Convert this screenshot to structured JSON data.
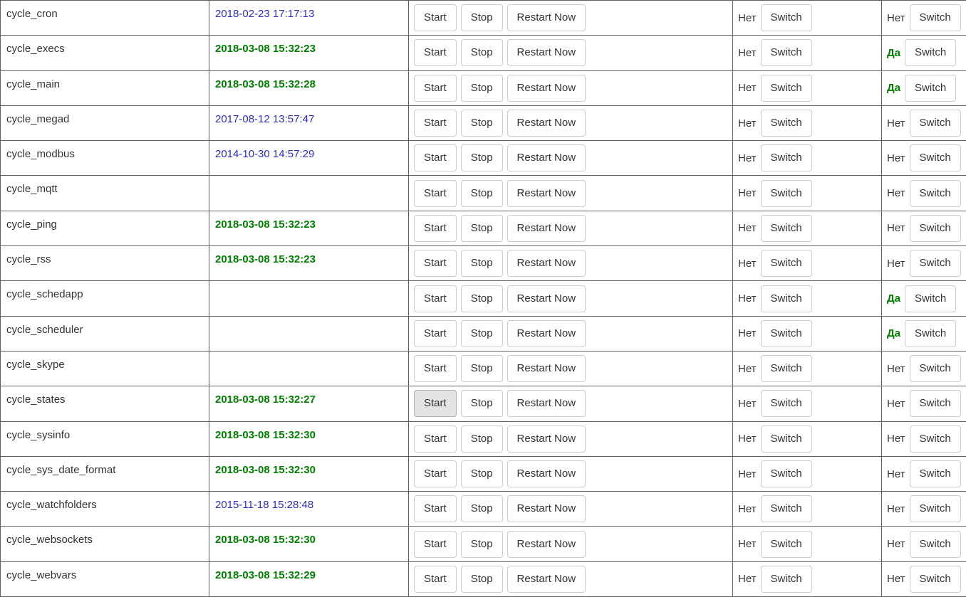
{
  "colors": {
    "timestamp_recent": "#008000",
    "timestamp_old": "#2d2dc6",
    "flag_yes": "#008000",
    "text": "#333333",
    "grid_border": "#606060",
    "button_border": "#cccccc",
    "button_active_bg": "#e4e4e4"
  },
  "buttons": {
    "start": "Start",
    "stop": "Stop",
    "restart": "Restart Now",
    "switch": "Switch"
  },
  "labels": {
    "yes": "Да",
    "no": "Нет"
  },
  "rows": [
    {
      "name": "cycle_cron",
      "timestamp": "2018-02-23 17:17:13",
      "timestamp_style": "old",
      "flag_a": "no",
      "flag_b": "no",
      "start_active": false
    },
    {
      "name": "cycle_execs",
      "timestamp": "2018-03-08 15:32:23",
      "timestamp_style": "recent",
      "flag_a": "no",
      "flag_b": "yes",
      "start_active": false
    },
    {
      "name": "cycle_main",
      "timestamp": "2018-03-08 15:32:28",
      "timestamp_style": "recent",
      "flag_a": "no",
      "flag_b": "yes",
      "start_active": false
    },
    {
      "name": "cycle_megad",
      "timestamp": "2017-08-12 13:57:47",
      "timestamp_style": "old",
      "flag_a": "no",
      "flag_b": "no",
      "start_active": false
    },
    {
      "name": "cycle_modbus",
      "timestamp": "2014-10-30 14:57:29",
      "timestamp_style": "old",
      "flag_a": "no",
      "flag_b": "no",
      "start_active": false
    },
    {
      "name": "cycle_mqtt",
      "timestamp": "",
      "timestamp_style": "old",
      "flag_a": "no",
      "flag_b": "no",
      "start_active": false
    },
    {
      "name": "cycle_ping",
      "timestamp": "2018-03-08 15:32:23",
      "timestamp_style": "recent",
      "flag_a": "no",
      "flag_b": "no",
      "start_active": false
    },
    {
      "name": "cycle_rss",
      "timestamp": "2018-03-08 15:32:23",
      "timestamp_style": "recent",
      "flag_a": "no",
      "flag_b": "no",
      "start_active": false
    },
    {
      "name": "cycle_schedapp",
      "timestamp": "",
      "timestamp_style": "old",
      "flag_a": "no",
      "flag_b": "yes",
      "start_active": false
    },
    {
      "name": "cycle_scheduler",
      "timestamp": "",
      "timestamp_style": "old",
      "flag_a": "no",
      "flag_b": "yes",
      "start_active": false
    },
    {
      "name": "cycle_skype",
      "timestamp": "",
      "timestamp_style": "old",
      "flag_a": "no",
      "flag_b": "no",
      "start_active": false
    },
    {
      "name": "cycle_states",
      "timestamp": "2018-03-08 15:32:27",
      "timestamp_style": "recent",
      "flag_a": "no",
      "flag_b": "no",
      "start_active": true
    },
    {
      "name": "cycle_sysinfo",
      "timestamp": "2018-03-08 15:32:30",
      "timestamp_style": "recent",
      "flag_a": "no",
      "flag_b": "no",
      "start_active": false
    },
    {
      "name": "cycle_sys_date_format",
      "timestamp": "2018-03-08 15:32:30",
      "timestamp_style": "recent",
      "flag_a": "no",
      "flag_b": "no",
      "start_active": false
    },
    {
      "name": "cycle_watchfolders",
      "timestamp": "2015-11-18 15:28:48",
      "timestamp_style": "old",
      "flag_a": "no",
      "flag_b": "no",
      "start_active": false
    },
    {
      "name": "cycle_websockets",
      "timestamp": "2018-03-08 15:32:30",
      "timestamp_style": "recent",
      "flag_a": "no",
      "flag_b": "no",
      "start_active": false
    },
    {
      "name": "cycle_webvars",
      "timestamp": "2018-03-08 15:32:29",
      "timestamp_style": "recent",
      "flag_a": "no",
      "flag_b": "no",
      "start_active": false
    }
  ]
}
